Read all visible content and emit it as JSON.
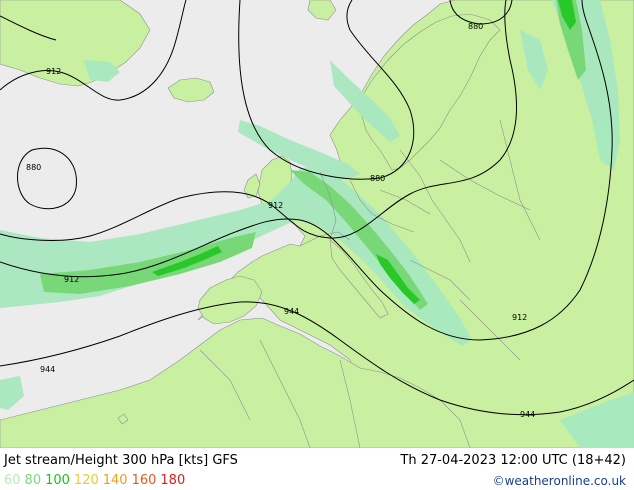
{
  "title": "Jet stream/Height 300 hPa [kts] GFS",
  "valid_time": "Th 27-04-2023 12:00 UTC (18+42)",
  "credit": "©weatheronline.co.uk",
  "legend": [
    {
      "label": "60",
      "color": "#b7ebb7"
    },
    {
      "label": "80",
      "color": "#7fd67f"
    },
    {
      "label": "100",
      "color": "#17c317"
    },
    {
      "label": "120",
      "color": "#e8c840"
    },
    {
      "label": "140",
      "color": "#e8a020"
    },
    {
      "label": "160",
      "color": "#e85820"
    },
    {
      "label": "180",
      "color": "#d82020"
    }
  ],
  "contours": {
    "c880a": "880",
    "c880b": "880",
    "c880c": "880",
    "c912a": "912",
    "c912b": "912",
    "c912c": "912",
    "c912d": "912",
    "c944a": "944",
    "c944b": "944",
    "c944c": "944"
  },
  "colors": {
    "sea": "#ececec",
    "land": "#c8f0a0",
    "jet60": "#a8e8c0",
    "jet80": "#78d878",
    "jet100": "#28c828",
    "border": "#909090",
    "contour": "#000000"
  }
}
